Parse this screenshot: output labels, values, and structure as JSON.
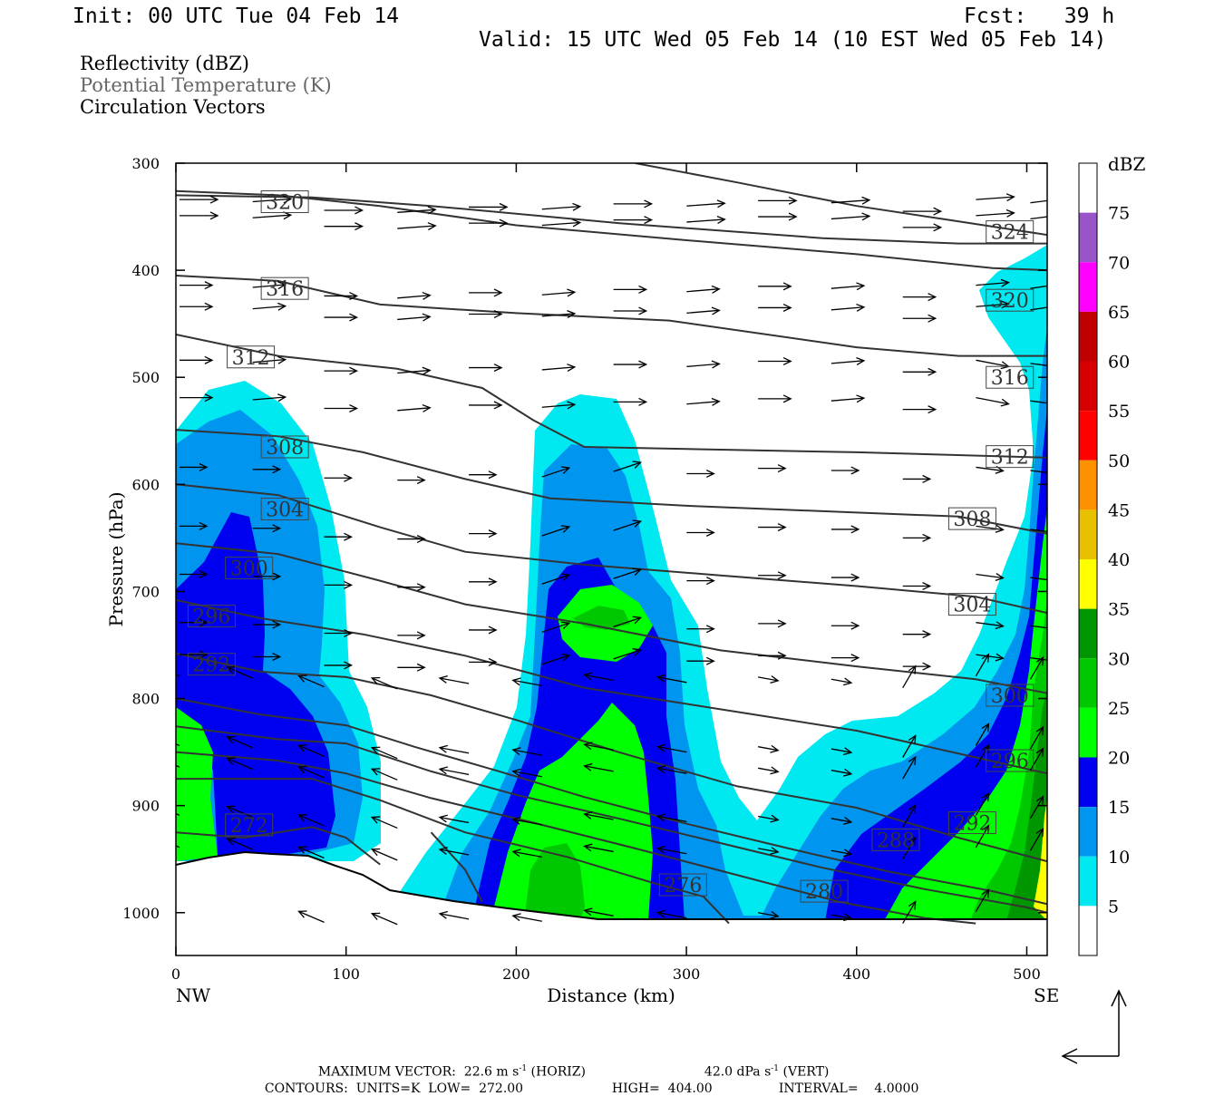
{
  "header": {
    "init": "Init: 00 UTC Tue 04 Feb 14",
    "fcst": "Fcst:   39 h",
    "valid": "Valid: 15 UTC Wed 05 Feb 14 (10 EST Wed 05 Feb 14)"
  },
  "legend": {
    "line1": "Reflectivity (dBZ)",
    "line2": "Potential Temperature (K)",
    "line3": "Circulation Vectors"
  },
  "chart_data": {
    "type": "contour",
    "xlabel": "Distance (km)",
    "ylabel": "Pressure (hPa)",
    "xlim": [
      0,
      512
    ],
    "ylim": [
      1040,
      300
    ],
    "x_ticks": [
      0,
      100,
      200,
      300,
      400,
      500
    ],
    "y_ticks": [
      300,
      400,
      500,
      600,
      700,
      800,
      900,
      1000
    ],
    "x_end_labels": {
      "left": "NW",
      "right": "SE"
    },
    "colorbar": {
      "label": "dBZ",
      "levels": [
        5,
        10,
        15,
        20,
        25,
        30,
        35,
        40,
        45,
        50,
        55,
        60,
        65,
        70,
        75
      ],
      "colors": [
        "#ffffff",
        "#00e8f0",
        "#0096f0",
        "#0000f0",
        "#00ff00",
        "#00c800",
        "#009600",
        "#ffff00",
        "#e8c000",
        "#ff9000",
        "#ff0000",
        "#d60000",
        "#c00000",
        "#ff00ff",
        "#9955c8",
        "#ffffff"
      ]
    },
    "theta_labels": [
      {
        "v": "320",
        "x": 64,
        "p": 336
      },
      {
        "v": "316",
        "x": 64,
        "p": 417
      },
      {
        "v": "312",
        "x": 44,
        "p": 481
      },
      {
        "v": "308",
        "x": 64,
        "p": 565
      },
      {
        "v": "304",
        "x": 64,
        "p": 623
      },
      {
        "v": "300",
        "x": 43,
        "p": 678
      },
      {
        "v": "296",
        "x": 21,
        "p": 723
      },
      {
        "v": "292",
        "x": 21,
        "p": 768
      },
      {
        "v": "272",
        "x": 43,
        "p": 918
      },
      {
        "v": "276",
        "x": 298,
        "p": 974
      },
      {
        "v": "280",
        "x": 381,
        "p": 980
      },
      {
        "v": "288",
        "x": 423,
        "p": 932
      },
      {
        "v": "292",
        "x": 468,
        "p": 916
      },
      {
        "v": "296",
        "x": 490,
        "p": 858
      },
      {
        "v": "300",
        "x": 490,
        "p": 797
      },
      {
        "v": "304",
        "x": 468,
        "p": 712
      },
      {
        "v": "308",
        "x": 468,
        "p": 632
      },
      {
        "v": "312",
        "x": 490,
        "p": 574
      },
      {
        "v": "316",
        "x": 490,
        "p": 500
      },
      {
        "v": "320",
        "x": 490,
        "p": 428
      },
      {
        "v": "324",
        "x": 490,
        "p": 364
      }
    ],
    "footer": {
      "line1_a": "MAXIMUM VECTOR:  22.6 m s",
      "line1_b": " (HORIZ)",
      "line1_c": "42.0 dPa s",
      "line1_d": " (VERT)",
      "sup": "-1",
      "line2_a": "CONTOURS:  UNITS=K  LOW=  272.00",
      "line2_b": "HIGH=  404.00",
      "line2_c": "INTERVAL=    4.0000"
    }
  }
}
